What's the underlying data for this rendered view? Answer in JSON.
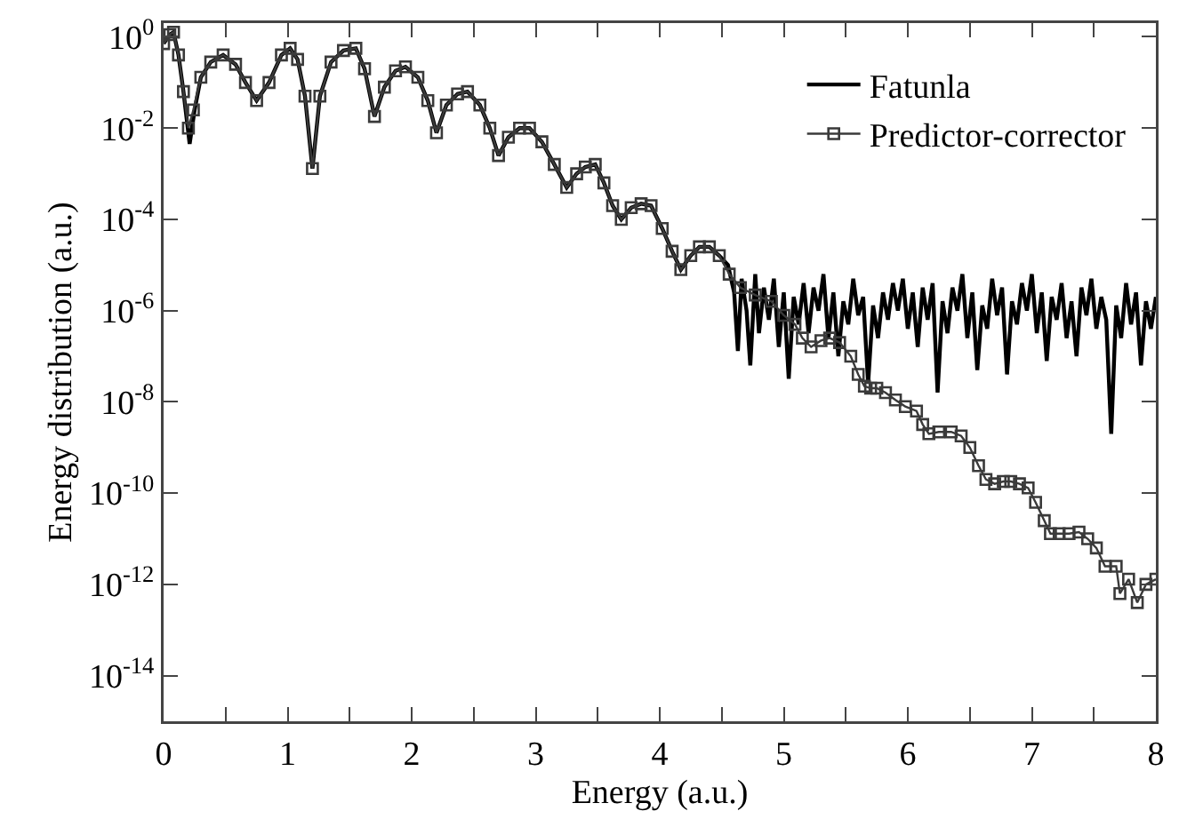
{
  "chart_data": {
    "type": "line",
    "xlabel": "Energy (a.u.)",
    "ylabel": "Energy distribution (a.u.)",
    "log": "y",
    "grid": false,
    "legend": "top right",
    "xlim": [
      0,
      8
    ],
    "xticks": [
      0,
      {
        "value": 0.5,
        "label": null
      },
      1,
      {
        "value": 1.5,
        "label": null
      },
      2,
      {
        "value": 2.5,
        "label": null
      },
      3,
      {
        "value": 3.5,
        "label": null
      },
      4,
      {
        "value": 4.5,
        "label": null
      },
      5,
      {
        "value": 5.5,
        "label": null
      },
      6,
      {
        "value": 6.5,
        "label": null
      },
      7,
      {
        "value": 7.5,
        "label": null
      },
      8
    ],
    "ylim": [
      1e-15,
      2
    ],
    "yticks": [
      {
        "value": 1,
        "label": "10$^{0}$"
      },
      {
        "value": 0.01,
        "label": "10$^{-2}$"
      },
      {
        "value": 0.0001,
        "label": "10$^{-4}$"
      },
      {
        "value": 1e-06,
        "label": "10$^{-6}$"
      },
      {
        "value": 1e-08,
        "label": "10$^{-8}$"
      },
      {
        "value": 1e-10,
        "label": "10$^{-10}$"
      },
      {
        "value": 1e-12,
        "label": "10$^{-12}$"
      },
      {
        "value": 1e-14,
        "label": "10$^{-14}$"
      }
    ],
    "series": [
      {
        "name": "Fatunla",
        "color": "#000000",
        "marker": "none",
        "line_style": "solid",
        "x": [
          0,
          0.05,
          0.08,
          0.12,
          0.16,
          0.21,
          0.25,
          0.3,
          0.38,
          0.48,
          0.58,
          0.66,
          0.75,
          0.85,
          0.95,
          1.02,
          1.08,
          1.14,
          1.2,
          1.26,
          1.35,
          1.45,
          1.55,
          1.62,
          1.7,
          1.78,
          1.87,
          1.95,
          2.05,
          2.13,
          2.2,
          2.28,
          2.37,
          2.45,
          2.55,
          2.63,
          2.7,
          2.78,
          2.87,
          2.95,
          3.05,
          3.15,
          3.25,
          3.33,
          3.4,
          3.48,
          3.55,
          3.62,
          3.69,
          3.77,
          3.85,
          3.93,
          4.02,
          4.1,
          4.17,
          4.25,
          4.32,
          4.4,
          4.48,
          4.55,
          4.6,
          4.63,
          4.66,
          4.7,
          4.73,
          4.77,
          4.8,
          4.84,
          4.88,
          4.92,
          4.96,
          5,
          5.04,
          5.08,
          5.12,
          5.16,
          5.2,
          5.24,
          5.28,
          5.32,
          5.36,
          5.4,
          5.44,
          5.48,
          5.52,
          5.56,
          5.6,
          5.64,
          5.68,
          5.72,
          5.76,
          5.8,
          5.84,
          5.88,
          5.92,
          5.96,
          6,
          6.04,
          6.08,
          6.12,
          6.16,
          6.2,
          6.24,
          6.28,
          6.32,
          6.36,
          6.4,
          6.44,
          6.48,
          6.52,
          6.56,
          6.6,
          6.64,
          6.68,
          6.72,
          6.76,
          6.8,
          6.84,
          6.88,
          6.92,
          6.96,
          7,
          7.04,
          7.08,
          7.12,
          7.16,
          7.2,
          7.24,
          7.28,
          7.32,
          7.36,
          7.4,
          7.44,
          7.48,
          7.52,
          7.56,
          7.6,
          7.64,
          7.68,
          7.72,
          7.76,
          7.8,
          7.84,
          7.88,
          7.92,
          7.96,
          8
        ],
        "values": [
          0.71,
          1.12,
          1.26,
          0.4,
          0.063,
          0.0045,
          0.025,
          0.13,
          0.28,
          0.4,
          0.25,
          0.1,
          0.04,
          0.1,
          0.4,
          0.56,
          0.32,
          0.05,
          0.0013,
          0.05,
          0.28,
          0.5,
          0.56,
          0.2,
          0.018,
          0.079,
          0.18,
          0.22,
          0.13,
          0.04,
          0.0079,
          0.032,
          0.056,
          0.063,
          0.032,
          0.01,
          0.0025,
          0.0063,
          0.01,
          0.01,
          0.005,
          0.0016,
          0.0005,
          0.001,
          0.0014,
          0.0016,
          0.00063,
          0.0002,
          0.0001,
          0.00018,
          0.00022,
          0.0002,
          6.3e-05,
          2e-05,
          7.9e-06,
          1.6e-05,
          2.5e-05,
          2.5e-05,
          1.6e-05,
          1e-05,
          2.5e-06,
          1.3e-07,
          5e-06,
          1e-06,
          6.3e-08,
          6.3e-06,
          3.2e-07,
          3.2e-06,
          6.3e-07,
          5e-06,
          1.6e-07,
          2.5e-06,
          3.2e-08,
          2e-06,
          5e-07,
          4e-06,
          3.2e-07,
          3.2e-06,
          1e-06,
          6.3e-06,
          2.5e-07,
          2.5e-06,
          1e-07,
          1.6e-06,
          5e-07,
          5e-06,
          7.9e-07,
          2e-06,
          2.5e-08,
          1.3e-06,
          2.5e-07,
          2.5e-06,
          6.3e-07,
          4e-06,
          1e-06,
          5e-06,
          4e-07,
          2.5e-06,
          1.6e-07,
          3.2e-06,
          6.3e-07,
          4e-06,
          1.6e-08,
          1.6e-06,
          3.2e-07,
          3.2e-06,
          1e-06,
          6.3e-06,
          2.5e-07,
          2.5e-06,
          5e-08,
          1.3e-06,
          4e-07,
          5e-06,
          7.9e-07,
          3.2e-06,
          4e-08,
          1.6e-06,
          5e-07,
          4e-06,
          1e-06,
          6.3e-06,
          3.2e-07,
          2.5e-06,
          7.9e-08,
          2e-06,
          6.3e-07,
          4e-06,
          2.5e-07,
          1.6e-06,
          1e-07,
          3.2e-06,
          7.9e-07,
          5e-06,
          4e-07,
          2e-06,
          6.3e-07,
          2e-09,
          1.3e-06,
          2.5e-07,
          4e-06,
          5e-07,
          2.5e-06,
          6.3e-08,
          1.6e-06,
          4e-07,
          2e-06
        ]
      },
      {
        "name": "Predictor-corrector",
        "color": "#3a3a3a",
        "marker": "square",
        "line_style": "solid",
        "x": [
          0,
          0.05,
          0.08,
          0.12,
          0.16,
          0.2,
          0.24,
          0.3,
          0.38,
          0.48,
          0.58,
          0.66,
          0.75,
          0.85,
          0.95,
          1.02,
          1.08,
          1.14,
          1.2,
          1.26,
          1.35,
          1.45,
          1.55,
          1.62,
          1.7,
          1.78,
          1.87,
          1.95,
          2.05,
          2.13,
          2.2,
          2.28,
          2.37,
          2.45,
          2.55,
          2.63,
          2.7,
          2.78,
          2.87,
          2.95,
          3.05,
          3.15,
          3.25,
          3.33,
          3.4,
          3.48,
          3.55,
          3.62,
          3.69,
          3.77,
          3.85,
          3.93,
          4.02,
          4.1,
          4.17,
          4.25,
          4.32,
          4.4,
          4.48,
          4.56,
          4.65,
          4.77,
          4.9,
          5,
          5.09,
          5.15,
          5.22,
          5.3,
          5.37,
          5.45,
          5.54,
          5.6,
          5.65,
          5.7,
          5.75,
          5.82,
          5.9,
          5.98,
          6.07,
          6.12,
          6.17,
          6.25,
          6.35,
          6.43,
          6.5,
          6.57,
          6.63,
          6.7,
          6.77,
          6.83,
          6.9,
          6.97,
          7.03,
          7.1,
          7.15,
          7.22,
          7.3,
          7.38,
          7.45,
          7.52,
          7.59,
          7.68,
          7.71,
          7.78,
          7.85,
          7.92,
          8
        ],
        "values": [
          0.71,
          1.12,
          1.26,
          0.4,
          0.063,
          0.01,
          0.025,
          0.13,
          0.28,
          0.4,
          0.25,
          0.1,
          0.04,
          0.1,
          0.4,
          0.56,
          0.32,
          0.05,
          0.0013,
          0.05,
          0.28,
          0.5,
          0.56,
          0.2,
          0.018,
          0.079,
          0.18,
          0.22,
          0.13,
          0.04,
          0.0079,
          0.032,
          0.056,
          0.063,
          0.032,
          0.01,
          0.0025,
          0.0063,
          0.01,
          0.01,
          0.005,
          0.0016,
          0.0005,
          0.001,
          0.0014,
          0.0016,
          0.00063,
          0.0002,
          0.0001,
          0.00018,
          0.00022,
          0.0002,
          6.3e-05,
          2e-05,
          7.9e-06,
          1.6e-05,
          2.5e-05,
          2.5e-05,
          1.6e-05,
          6.3e-06,
          3.2e-06,
          2.2e-06,
          1.6e-06,
          7.9e-07,
          5e-07,
          2.5e-07,
          1.6e-07,
          2.2e-07,
          2.5e-07,
          2e-07,
          1e-07,
          4e-08,
          2.2e-08,
          2e-08,
          2e-08,
          1.6e-08,
          1.1e-08,
          7.9e-09,
          6.3e-09,
          3.2e-09,
          2e-09,
          2.2e-09,
          2.2e-09,
          1.8e-09,
          1e-09,
          4e-10,
          2e-10,
          1.6e-10,
          1.8e-10,
          1.8e-10,
          1.6e-10,
          1.3e-10,
          6.3e-11,
          2.5e-11,
          1.3e-11,
          1.3e-11,
          1.3e-11,
          1.4e-11,
          1e-11,
          6.3e-12,
          2.5e-12,
          2.5e-12,
          6.3e-13,
          1.3e-12,
          4e-13,
          1e-12,
          1.3e-12
        ]
      }
    ]
  }
}
